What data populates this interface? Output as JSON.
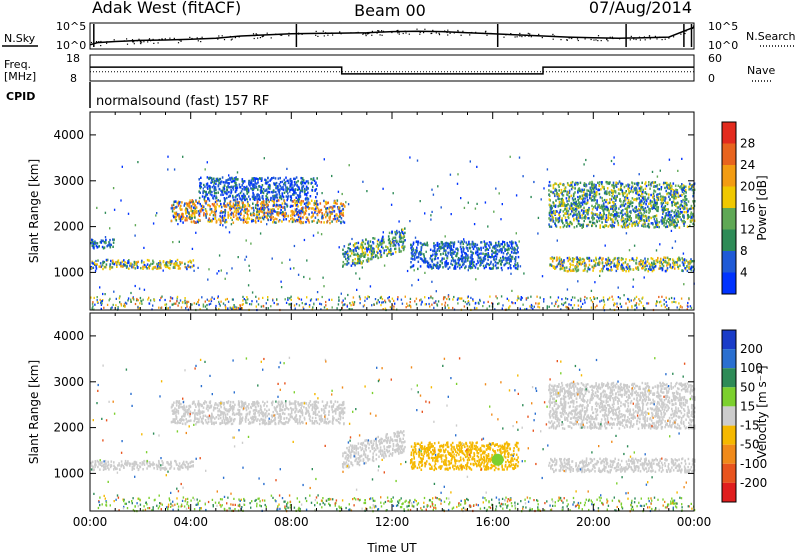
{
  "header": {
    "station": "Adak West (fitACF)",
    "beam": "Beam 00",
    "date": "07/Aug/2014"
  },
  "panel_labels": {
    "nsky": "N.Sky",
    "nsearch": "N.Search",
    "freq_line1": "Freq.",
    "freq_line2": "[MHz]",
    "nave": "Nave",
    "cpid": "CPID",
    "cpid_value": "normalsound (fast) 157 RF"
  },
  "noise_axis": {
    "left_ticks": [
      "10^5",
      "10^0"
    ],
    "right_ticks": [
      "10^5",
      "10^0"
    ]
  },
  "freq_axis": {
    "left_ticks": [
      "18",
      "8"
    ],
    "right_ticks": [
      "60",
      "0"
    ]
  },
  "chart_data": [
    {
      "type": "line",
      "name": "noise",
      "x_unit": "hours UT",
      "x": [
        0,
        0.3,
        1,
        2,
        3,
        4,
        5,
        6,
        7,
        8,
        9,
        10,
        11,
        12,
        13,
        14,
        15,
        16,
        17,
        18,
        19,
        20,
        21,
        22,
        23,
        24
      ],
      "nsky": [
        0.1,
        0.2,
        0.25,
        0.3,
        0.32,
        0.35,
        0.4,
        0.5,
        0.55,
        0.6,
        0.62,
        0.63,
        0.65,
        0.7,
        0.72,
        0.7,
        0.65,
        0.6,
        0.55,
        0.5,
        0.45,
        0.42,
        0.4,
        0.42,
        0.45,
        0.9
      ],
      "ylim": [
        0,
        1
      ]
    },
    {
      "type": "line",
      "name": "frequency",
      "x_unit": "hours UT",
      "steps": [
        {
          "x0": 0,
          "x1": 10,
          "freq": 13.4
        },
        {
          "x0": 10,
          "x1": 18,
          "freq": 10.3
        },
        {
          "x0": 18,
          "x1": 24,
          "freq": 13.4
        }
      ],
      "nave": 20,
      "ylim_left": [
        8,
        18
      ],
      "ylim_right": [
        0,
        60
      ]
    },
    {
      "type": "heatmap",
      "name": "power",
      "title": "",
      "xlabel": "",
      "ylabel": "Slant Range [km]",
      "xlim": [
        0,
        24
      ],
      "ylim": [
        180,
        4500
      ],
      "y_ticks": [
        "1000",
        "2000",
        "3000",
        "4000"
      ],
      "colorbar_label": "Power [dB]",
      "colorbar_ticks": [
        "4",
        "8",
        "12",
        "16",
        "20",
        "24",
        "28"
      ],
      "colors": [
        "#0033ff",
        "#1f5ad6",
        "#2e8b57",
        "#5fa855",
        "#f0c800",
        "#f39c12",
        "#e8641e",
        "#e32b1e"
      ],
      "features": [
        {
          "t0": 0.0,
          "t1": 4.1,
          "r0": 1100,
          "r1": 1300,
          "value": 18
        },
        {
          "t0": 0.0,
          "t1": 1.0,
          "r0": 1550,
          "r1": 1750,
          "value": 8
        },
        {
          "t0": 3.2,
          "t1": 10.1,
          "r0": 2100,
          "r1": 2600,
          "value": 22
        },
        {
          "t0": 4.3,
          "t1": 9.0,
          "r0": 2600,
          "r1": 3100,
          "value": 6
        },
        {
          "t0": 10.0,
          "t1": 12.5,
          "r0": 1500,
          "r1": 2000,
          "value": 14
        },
        {
          "t0": 12.7,
          "t1": 17.0,
          "r0": 1100,
          "r1": 1700,
          "value": 7
        },
        {
          "t0": 18.2,
          "t1": 24.0,
          "r0": 2000,
          "r1": 3000,
          "value": 14
        },
        {
          "t0": 18.2,
          "t1": 24.0,
          "r0": 1050,
          "r1": 1350,
          "value": 17
        }
      ]
    },
    {
      "type": "heatmap",
      "name": "velocity",
      "title": "",
      "xlabel": "Time UT",
      "ylabel": "Slant Range [km]",
      "xlim": [
        0,
        24
      ],
      "ylim": [
        180,
        4500
      ],
      "x_ticks": [
        "00:00",
        "04:00",
        "08:00",
        "12:00",
        "16:00",
        "20:00",
        "00:00"
      ],
      "y_ticks": [
        "1000",
        "2000",
        "3000",
        "4000"
      ],
      "colorbar_label": "Velocity [m s⁻¹]",
      "colorbar_ticks": [
        "200",
        "100",
        "50",
        "15",
        "-15",
        "-50",
        "-100",
        "-200"
      ],
      "colors": [
        "#1a3cc8",
        "#2a6fd0",
        "#2e8b57",
        "#7cd02e",
        "#cccccc",
        "#f5b800",
        "#f08a1a",
        "#e8541e",
        "#e01e1e"
      ],
      "features": [
        {
          "t0": 0.0,
          "t1": 4.1,
          "r0": 1100,
          "r1": 1300,
          "value": 0
        },
        {
          "t0": 3.2,
          "t1": 10.1,
          "r0": 2100,
          "r1": 2600,
          "value": 0
        },
        {
          "t0": 10.0,
          "t1": 12.5,
          "r0": 1500,
          "r1": 2000,
          "value": 0
        },
        {
          "t0": 12.7,
          "t1": 17.0,
          "r0": 1100,
          "r1": 1700,
          "value": -35
        },
        {
          "t0": 18.2,
          "t1": 24.0,
          "r0": 2000,
          "r1": 3000,
          "value": 0
        },
        {
          "t0": 18.2,
          "t1": 24.0,
          "r0": 1050,
          "r1": 1350,
          "value": 0
        }
      ]
    }
  ]
}
